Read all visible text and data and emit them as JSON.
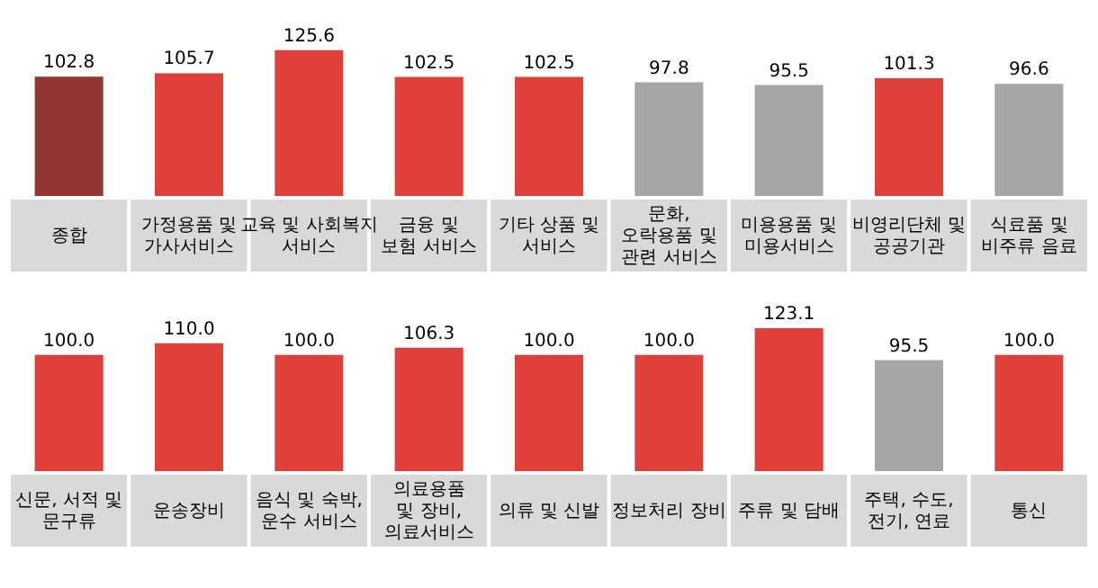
{
  "chart_data": [
    {
      "type": "bar",
      "categories": [
        "종합",
        "가정용품 및\n가사서비스",
        "교육 및 사회복지\n서비스",
        "금융 및\n보험 서비스",
        "기타 상품 및\n서비스",
        "문화, 오락용품 및\n관련 서비스",
        "미용용품 및\n미용서비스",
        "비영리단체 및\n공공기관",
        "식료품 및\n비주류 음료"
      ],
      "values": [
        102.8,
        105.7,
        125.6,
        102.5,
        102.5,
        97.8,
        95.5,
        101.3,
        96.6
      ],
      "colors": [
        "#943634",
        "#e0403a",
        "#e0403a",
        "#e0403a",
        "#e0403a",
        "#a6a6a6",
        "#a6a6a6",
        "#e0403a",
        "#a6a6a6"
      ],
      "data_labels": true,
      "tick_labels": "x"
    },
    {
      "type": "bar",
      "categories": [
        "신문, 서적 및\n문구류",
        "운송장비",
        "음식 및 숙박,\n운수 서비스",
        "의료용품 및 장비,\n의료서비스",
        "의류 및 신발",
        "정보처리 장비",
        "주류 및 담배",
        "주택, 수도,\n전기, 연료",
        "통신"
      ],
      "values": [
        100.0,
        110.0,
        100.0,
        106.3,
        100.0,
        100.0,
        123.1,
        95.5,
        100.0
      ],
      "colors": [
        "#e0403a",
        "#e0403a",
        "#e0403a",
        "#e0403a",
        "#e0403a",
        "#e0403a",
        "#e0403a",
        "#a6a6a6",
        "#e0403a"
      ],
      "value_labels": [
        "100.0",
        "110.0",
        "100.0",
        "106.3",
        "100.0",
        "100.0",
        "123.1",
        "95.5",
        "100.0"
      ],
      "tick_labels": "x"
    }
  ]
}
